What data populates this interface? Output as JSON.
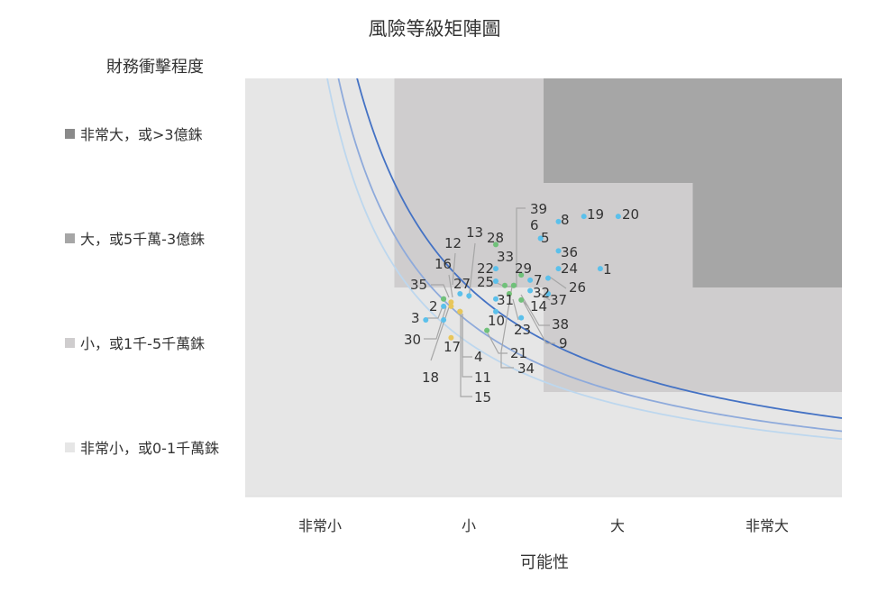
{
  "chart_data": {
    "type": "scatter",
    "title": "風險等級矩陣圖",
    "xlabel": "可能性",
    "ylabel": "財務衝擊程度",
    "x_categories": [
      "非常小",
      "小",
      "大",
      "非常大"
    ],
    "y_categories": [
      {
        "label": "非常小，或0-1千萬銖",
        "color": "#e6e6e6"
      },
      {
        "label": "小，或1千-5千萬銖",
        "color": "#cfcdce"
      },
      {
        "label": "大，或5千萬-3億銖",
        "color": "#a6a6a6"
      },
      {
        "label": "非常大，或>3億銖",
        "color": "#8a8a8a"
      }
    ],
    "xlim": [
      0,
      4
    ],
    "ylim": [
      0,
      4
    ],
    "zone_colors": {
      "low": "#e6e6e6",
      "medium": "#cfcdce",
      "high": "#a6a6a6"
    },
    "curves": [
      {
        "k": 3.0,
        "color": "#4472c4"
      },
      {
        "k": 2.5,
        "color": "#8eaadb"
      },
      {
        "k": 2.2,
        "color": "#bdd7ee"
      }
    ],
    "points": [
      {
        "id": "1",
        "x": 2.38,
        "y": 2.18,
        "color": "#5bc0eb"
      },
      {
        "id": "2",
        "x": 1.33,
        "y": 1.82,
        "color": "#5bc0eb"
      },
      {
        "id": "3",
        "x": 1.21,
        "y": 1.69,
        "color": "#5bc0eb"
      },
      {
        "id": "4",
        "x": 1.44,
        "y": 1.77,
        "color": "#70c17a"
      },
      {
        "id": "5",
        "x": 1.98,
        "y": 2.47,
        "color": "#5bc0eb"
      },
      {
        "id": "6",
        "x": 1.98,
        "y": 2.47,
        "color": "#5bc0eb"
      },
      {
        "id": "7",
        "x": 1.91,
        "y": 2.07,
        "color": "#5bc0eb"
      },
      {
        "id": "8",
        "x": 2.1,
        "y": 2.63,
        "color": "#5bc0eb"
      },
      {
        "id": "9",
        "x": 1.77,
        "y": 1.94,
        "color": "#e8c65b"
      },
      {
        "id": "10",
        "x": 1.68,
        "y": 1.77,
        "color": "#5bc0eb"
      },
      {
        "id": "11",
        "x": 1.44,
        "y": 1.77,
        "color": "#e8c65b"
      },
      {
        "id": "12",
        "x": 1.38,
        "y": 1.86,
        "color": "#e8c65b"
      },
      {
        "id": "13",
        "x": 1.5,
        "y": 1.92,
        "color": "#5bc0eb"
      },
      {
        "id": "14",
        "x": 1.77,
        "y": 1.94,
        "color": "#70c17a"
      },
      {
        "id": "15",
        "x": 1.44,
        "y": 1.77,
        "color": "#e8c65b"
      },
      {
        "id": "16",
        "x": 1.33,
        "y": 1.89,
        "color": "#70c17a"
      },
      {
        "id": "17",
        "x": 1.38,
        "y": 1.52,
        "color": "#e8c65b"
      },
      {
        "id": "18",
        "x": 1.38,
        "y": 1.82,
        "color": "#e8c65b"
      },
      {
        "id": "19",
        "x": 2.27,
        "y": 2.68,
        "color": "#5bc0eb"
      },
      {
        "id": "20",
        "x": 2.5,
        "y": 2.68,
        "color": "#5bc0eb"
      },
      {
        "id": "21",
        "x": 1.62,
        "y": 1.59,
        "color": "#70c17a"
      },
      {
        "id": "22",
        "x": 1.68,
        "y": 2.18,
        "color": "#5bc0eb"
      },
      {
        "id": "23",
        "x": 1.85,
        "y": 1.71,
        "color": "#5bc0eb"
      },
      {
        "id": "24",
        "x": 2.1,
        "y": 2.18,
        "color": "#5bc0eb"
      },
      {
        "id": "25",
        "x": 1.68,
        "y": 2.06,
        "color": "#5bc0eb"
      },
      {
        "id": "26",
        "x": 2.03,
        "y": 2.09,
        "color": "#5bc0eb"
      },
      {
        "id": "27",
        "x": 1.44,
        "y": 1.94,
        "color": "#5bc0eb"
      },
      {
        "id": "28",
        "x": 1.68,
        "y": 2.41,
        "color": "#70c17a"
      },
      {
        "id": "29",
        "x": 1.85,
        "y": 2.12,
        "color": "#70c17a"
      },
      {
        "id": "30",
        "x": 1.33,
        "y": 1.69,
        "color": "#5bc0eb"
      },
      {
        "id": "31",
        "x": 1.68,
        "y": 1.89,
        "color": "#5bc0eb"
      },
      {
        "id": "32",
        "x": 1.91,
        "y": 1.97,
        "color": "#5bc0eb"
      },
      {
        "id": "33",
        "x": 1.74,
        "y": 2.02,
        "color": "#70c17a"
      },
      {
        "id": "34",
        "x": 1.8,
        "y": 2.02,
        "color": "#70c17a"
      },
      {
        "id": "35",
        "x": 1.33,
        "y": 1.89,
        "color": "#70c17a"
      },
      {
        "id": "36",
        "x": 2.1,
        "y": 2.35,
        "color": "#5bc0eb"
      },
      {
        "id": "37",
        "x": 2.03,
        "y": 1.94,
        "color": "#5bc0eb"
      },
      {
        "id": "38",
        "x": 1.85,
        "y": 1.88,
        "color": "#70c17a"
      },
      {
        "id": "39",
        "x": 1.8,
        "y": 2.02,
        "color": "#70c17a"
      }
    ]
  }
}
